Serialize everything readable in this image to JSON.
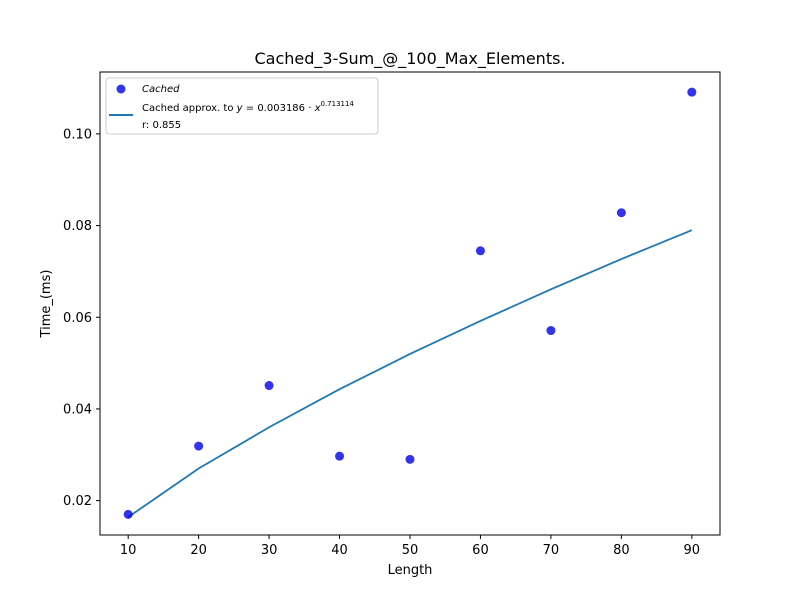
{
  "chart_data": {
    "type": "scatter",
    "title": "Cached_3-Sum_@_100_Max_Elements.",
    "xlabel": "Length",
    "ylabel": "Time_(ms)",
    "xlim": [
      6,
      94
    ],
    "ylim": [
      0.0125,
      0.1135
    ],
    "xticks": [
      10,
      20,
      30,
      40,
      50,
      60,
      70,
      80,
      90
    ],
    "yticks": [
      0.02,
      0.04,
      0.06,
      0.08,
      0.1
    ],
    "ytick_labels": [
      "0.02",
      "0.04",
      "0.06",
      "0.08",
      "0.10"
    ],
    "grid": false,
    "legend_position": "top-left",
    "series": [
      {
        "name": "Cached",
        "kind": "scatter",
        "color": "#0000e6",
        "x": [
          10,
          20,
          30,
          40,
          50,
          60,
          70,
          80,
          90
        ],
        "y": [
          0.017,
          0.0319,
          0.0451,
          0.0297,
          0.029,
          0.0745,
          0.0571,
          0.0828,
          0.1091
        ]
      },
      {
        "name": "Cached approx. to y = 0.003186 · x^0.713114",
        "kind": "line",
        "color": "#1f77b4",
        "x": [
          10,
          20,
          30,
          40,
          50,
          60,
          70,
          80,
          90
        ],
        "y": [
          0.0164,
          0.027,
          0.036,
          0.0443,
          0.052,
          0.0592,
          0.0661,
          0.0727,
          0.079
        ]
      }
    ],
    "legend": {
      "scatter_label": "Cached",
      "fit_label_prefix": "Cached approx. to ",
      "fit_y": "y",
      "fit_eq": " = 0.003186 · ",
      "fit_x": "x",
      "fit_exp": "0.713114",
      "fit_r": "r: 0.855"
    }
  }
}
